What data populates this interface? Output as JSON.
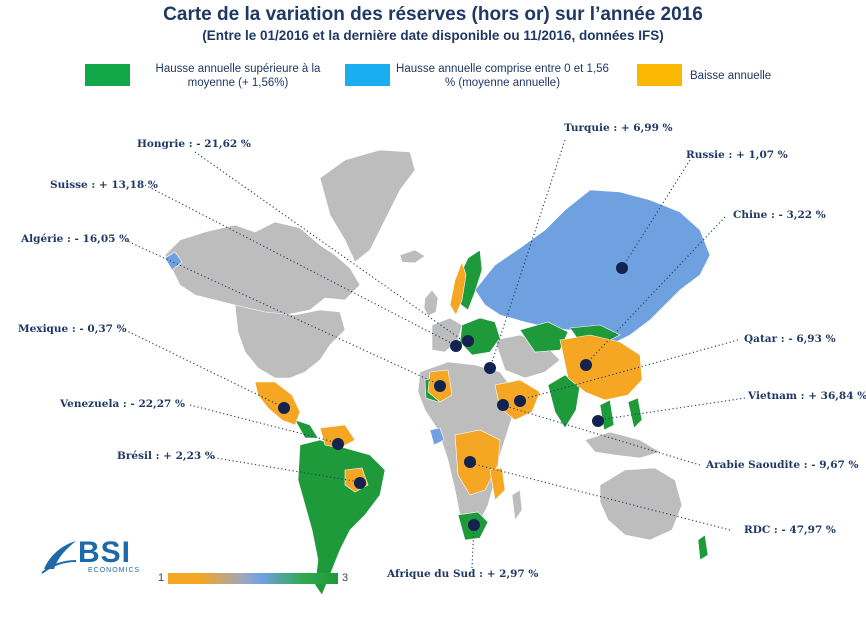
{
  "header": {
    "title": "Carte de la variation des réserves (hors or) sur l’année 2016",
    "subtitle": "(Entre le 01/2016 et la dernière date disponible ou 11/2016, données IFS)"
  },
  "legend": [
    {
      "color": "#12a84a",
      "label": "Hausse annuelle supérieure à la moyenne (+ 1,56%)"
    },
    {
      "color": "#1aaef0",
      "label": "Hausse annuelle comprise entre 0 et 1,56 % (moyenne annuelle)"
    },
    {
      "color": "#fbb800",
      "label": "Baisse annuelle"
    }
  ],
  "colors": {
    "above_average": "#1f9a3a",
    "below_average": "#6fa0e0",
    "decline": "#f5a623",
    "no_data": "#bdbdbd",
    "marker": "#14224f",
    "text": "#1f3864"
  },
  "callouts": {
    "hongrie": "Hongrie : - 21,62 %",
    "suisse": "Suisse : + 13,18 %",
    "algerie": "Algérie : - 16,05 %",
    "mexique": "Mexique : - 0,37 %",
    "venezuela": "Venezuela : - 22,27 %",
    "bresil": "Brésil : + 2,23 %",
    "turquie": "Turquie : + 6,99 %",
    "russie": "Russie : + 1,07 %",
    "chine": "Chine : - 3,22 %",
    "qatar": "Qatar : - 6,93 %",
    "vietnam": "Vietnam : + 36,84 %",
    "arabie": "Arabie Saoudite : - 9,67 %",
    "rdc": "RDC : - 47,97 %",
    "afrique_sud": "Afrique du Sud : + 2,97 %"
  },
  "scale": {
    "min": "1",
    "max": "3"
  },
  "logo": {
    "name": "BSI",
    "sub": "ECONOMICS"
  }
}
